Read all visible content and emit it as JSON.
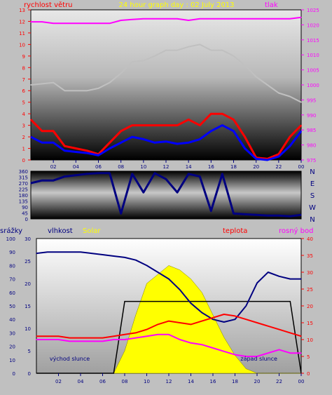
{
  "header": {
    "left_label": "rychlost větru",
    "center_title": "24 hour graph day : 02 July 2013",
    "right_label": "tlak"
  },
  "colors": {
    "page_bg": "#c0c0c0",
    "wind_gust": "#ff0000",
    "wind_avg": "#0000ff",
    "pressure": "#ff00ff",
    "temp_like": "#c0c0c0",
    "direction": "#000080",
    "humidity": "#000080",
    "temperature": "#ff0000",
    "dewpoint": "#ff00ff",
    "solar": "#ffff00",
    "rain": "#000000",
    "title": "#ffff00"
  },
  "x_ticks": [
    "02",
    "04",
    "06",
    "08",
    "10",
    "12",
    "14",
    "16",
    "18",
    "20",
    "22",
    "00"
  ],
  "chart_data": [
    {
      "type": "line",
      "name": "wind-pressure",
      "x": [
        0,
        1,
        2,
        3,
        4,
        5,
        6,
        7,
        8,
        9,
        10,
        11,
        12,
        13,
        14,
        15,
        16,
        17,
        18,
        19,
        20,
        21,
        22,
        23,
        24
      ],
      "y_left_ticks": [
        "0",
        "1",
        "2",
        "3",
        "4",
        "5",
        "6",
        "7",
        "8",
        "9",
        "10",
        "11",
        "12",
        "13"
      ],
      "y_right_ticks": [
        "975",
        "980",
        "985",
        "990",
        "995",
        "1000",
        "1005",
        "1010",
        "1015",
        "1020",
        "1025"
      ],
      "ylim_left": [
        0,
        13
      ],
      "ylim_right": [
        975,
        1025
      ],
      "series": [
        {
          "role": "gust",
          "values": [
            3.5,
            2.5,
            2.5,
            1.2,
            1.0,
            0.8,
            0.5,
            1.5,
            2.5,
            3.0,
            3.0,
            3.0,
            3.0,
            3.0,
            3.5,
            3.0,
            4.0,
            4.0,
            3.5,
            2.0,
            0.2,
            0.1,
            0.5,
            2.0,
            3.0
          ]
        },
        {
          "role": "average",
          "values": [
            2.0,
            1.5,
            1.5,
            0.8,
            0.7,
            0.6,
            0.4,
            1.0,
            1.5,
            2.0,
            1.8,
            1.5,
            1.6,
            1.4,
            1.5,
            1.8,
            2.5,
            3.0,
            2.5,
            1.0,
            0.1,
            0.0,
            0.3,
            1.2,
            2.5
          ]
        },
        {
          "role": "pressure",
          "values": [
            1021,
            1021,
            1020.5,
            1020.5,
            1020.5,
            1020.5,
            1020.5,
            1020.5,
            1021.5,
            1021.8,
            1022,
            1022,
            1022,
            1022,
            1021.5,
            1022,
            1022,
            1022,
            1022,
            1022,
            1022,
            1022,
            1022,
            1022,
            1022.5
          ]
        },
        {
          "role": "temperature-like",
          "values": [
            6.5,
            6.6,
            6.7,
            6.0,
            6.0,
            6.0,
            6.2,
            6.7,
            7.5,
            8.5,
            8.6,
            9.0,
            9.5,
            9.5,
            9.8,
            10.0,
            9.5,
            9.5,
            9.0,
            8.2,
            7.2,
            6.5,
            5.8,
            5.5,
            5.0
          ]
        }
      ]
    },
    {
      "type": "line",
      "name": "wind-direction",
      "x": [
        0,
        1,
        2,
        3,
        4,
        5,
        6,
        7,
        8,
        9,
        10,
        11,
        12,
        13,
        14,
        15,
        16,
        17,
        18,
        19,
        20,
        21,
        22,
        23,
        24
      ],
      "y_left_ticks": [
        "0",
        "45",
        "90",
        "135",
        "180",
        "225",
        "270",
        "315",
        "360"
      ],
      "y_right_ticks": [
        "N",
        "W",
        "S",
        "E",
        "N"
      ],
      "ylim": [
        0,
        360
      ],
      "series": [
        {
          "role": "direction",
          "values": [
            270,
            290,
            290,
            320,
            330,
            340,
            345,
            345,
            40,
            340,
            200,
            345,
            300,
            200,
            340,
            320,
            60,
            340,
            40,
            35,
            30,
            25,
            25,
            20,
            30
          ]
        }
      ]
    },
    {
      "type": "area",
      "name": "temp-humidity-solar",
      "header": {
        "rain_label": "srážky",
        "humidity_label": "vlhkost",
        "solar_label": "Solar",
        "temp_label": "teplota",
        "dewpoint_label": "rosný bod"
      },
      "annotations": {
        "sunrise": "východ slunce",
        "sunset": "západ slunce"
      },
      "x": [
        0,
        1,
        2,
        3,
        4,
        5,
        6,
        7,
        8,
        9,
        10,
        11,
        12,
        13,
        14,
        15,
        16,
        17,
        18,
        19,
        20,
        21,
        22,
        23,
        24
      ],
      "y_left1_ticks": [
        "0",
        "10",
        "20",
        "30",
        "40",
        "50",
        "60",
        "70",
        "80",
        "90",
        "100"
      ],
      "y_left2_ticks": [
        "0",
        "5",
        "10",
        "15",
        "20",
        "25",
        "30"
      ],
      "y_right_ticks": [
        "0",
        "5",
        "10",
        "15",
        "20",
        "25",
        "30",
        "35",
        "40"
      ],
      "series": [
        {
          "role": "humidity",
          "values": [
            89,
            90,
            90,
            90,
            90,
            89,
            88,
            87,
            86,
            84,
            80,
            75,
            70,
            62,
            52,
            45,
            40,
            38,
            40,
            50,
            67,
            75,
            72,
            70,
            70
          ]
        },
        {
          "role": "temperature",
          "values": [
            11,
            11,
            11,
            10.5,
            10.5,
            10.5,
            10.5,
            11,
            11.5,
            12,
            13,
            14.5,
            15.5,
            15,
            14.5,
            15.5,
            16.5,
            17.5,
            17,
            16,
            15,
            14,
            13,
            12,
            11
          ]
        },
        {
          "role": "dewpoint",
          "values": [
            10,
            10,
            10,
            9.5,
            9.5,
            9.5,
            9.5,
            10,
            10,
            10.5,
            11,
            11.5,
            11.5,
            10,
            9,
            8.5,
            7.5,
            6.5,
            5.5,
            5,
            5,
            6,
            7,
            6,
            6
          ]
        },
        {
          "role": "solar",
          "values": [
            0,
            0,
            0,
            0,
            0,
            0,
            0,
            0,
            5,
            13,
            20,
            22,
            24,
            23,
            21,
            18,
            13,
            8,
            4,
            1,
            0,
            0,
            0,
            0,
            0
          ]
        },
        {
          "role": "sun-up",
          "values": [
            0,
            0,
            0,
            0,
            0,
            0,
            0,
            0,
            1,
            1,
            1,
            1,
            1,
            1,
            1,
            1,
            1,
            1,
            1,
            1,
            1,
            1,
            1,
            1,
            0
          ]
        }
      ]
    }
  ]
}
